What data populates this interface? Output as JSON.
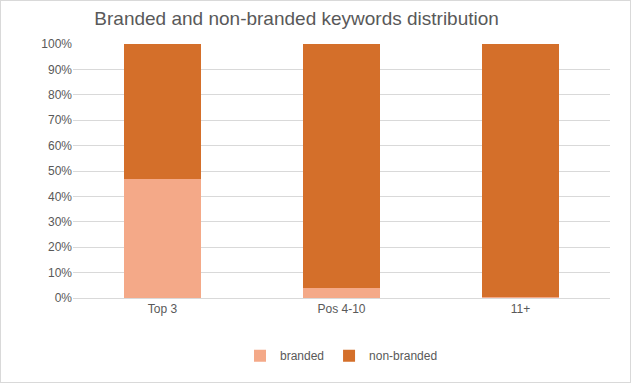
{
  "chart_data": {
    "type": "bar",
    "title": "Branded and non-branded keywords distribution",
    "categories": [
      "Top 3",
      "Pos 4-10",
      "11+"
    ],
    "series": [
      {
        "name": "branded",
        "color": "#f4a988",
        "values": [
          47,
          4,
          0.5
        ]
      },
      {
        "name": "non-branded",
        "color": "#d46f2a",
        "values": [
          53,
          96,
          99.5
        ]
      }
    ],
    "stacked": true,
    "ylim": [
      0,
      100
    ],
    "yticks": [
      {
        "value": 0,
        "label": "0%"
      },
      {
        "value": 10,
        "label": "10%"
      },
      {
        "value": 20,
        "label": "20%"
      },
      {
        "value": 30,
        "label": "30%"
      },
      {
        "value": 40,
        "label": "40%"
      },
      {
        "value": 50,
        "label": "50%"
      },
      {
        "value": 60,
        "label": "60%"
      },
      {
        "value": 70,
        "label": "70%"
      },
      {
        "value": 80,
        "label": "80%"
      },
      {
        "value": 90,
        "label": "90%"
      },
      {
        "value": 100,
        "label": "100%"
      }
    ],
    "grid": true,
    "legend": "bottom"
  }
}
